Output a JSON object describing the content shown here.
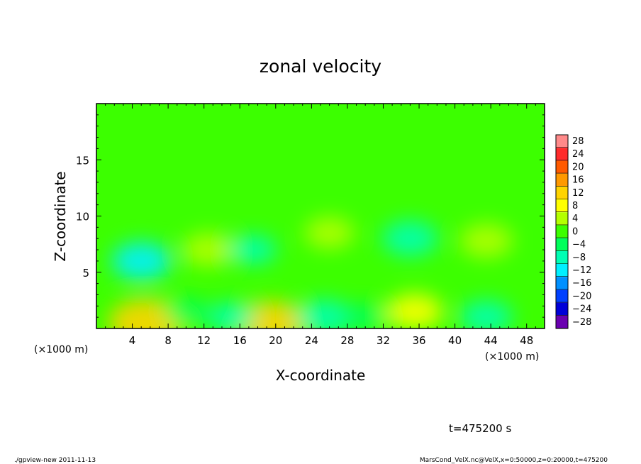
{
  "chart_data": {
    "type": "heatmap",
    "title": "zonal velocity",
    "xlabel": "X-coordinate",
    "ylabel": "Z-coordinate",
    "x_unit_left": "(×1000 m)",
    "x_unit_right": "(×1000 m)",
    "xlim": [
      0,
      50
    ],
    "ylim": [
      0,
      20
    ],
    "x_ticks": [
      4,
      8,
      12,
      16,
      20,
      24,
      28,
      32,
      36,
      40,
      44,
      48
    ],
    "y_ticks": [
      5,
      10,
      15
    ],
    "colorbar": {
      "levels": [
        28,
        24,
        20,
        16,
        12,
        8,
        4,
        0,
        -4,
        -8,
        -12,
        -16,
        -20,
        -24,
        -28
      ],
      "labels": [
        "28",
        "24",
        "20",
        "16",
        "12",
        "8",
        "4",
        "0",
        "−4",
        "−8",
        "−12",
        "−16",
        "−20",
        "−24",
        "−28"
      ],
      "colors": [
        "#ff8a8a",
        "#ff2b2b",
        "#ff5a00",
        "#ff9900",
        "#ffd400",
        "#ffff00",
        "#b4ff00",
        "#3cff00",
        "#00ff5a",
        "#00ffb4",
        "#00f0ff",
        "#0090ff",
        "#0040ff",
        "#0000d8",
        "#6a00b0"
      ]
    },
    "background_value": 0,
    "features": [
      {
        "x": 5.5,
        "z": 0.5,
        "value": 14
      },
      {
        "x": 19.5,
        "z": 0.5,
        "value": 12
      },
      {
        "x": 35.5,
        "z": 1.5,
        "value": 8
      },
      {
        "x": 12.5,
        "z": 7.0,
        "value": 7
      },
      {
        "x": 26.0,
        "z": 8.5,
        "value": 6
      },
      {
        "x": 43.5,
        "z": 7.8,
        "value": 7
      },
      {
        "x": 5.0,
        "z": 6.0,
        "value": -9
      },
      {
        "x": 17.5,
        "z": 7.0,
        "value": -5
      },
      {
        "x": 35.0,
        "z": 8.0,
        "value": -8
      },
      {
        "x": 25.5,
        "z": 1.0,
        "value": -8
      },
      {
        "x": 43.5,
        "z": 1.0,
        "value": -7
      },
      {
        "x": 15.0,
        "z": 1.0,
        "value": -5
      },
      {
        "x": 10.0,
        "z": 1.5,
        "value": -4
      },
      {
        "x": 30.0,
        "z": 1.0,
        "value": -4
      }
    ],
    "grid": false
  },
  "annotations": {
    "time": "t=475200 s",
    "footer_left": "./gpview-new  2011-11-13",
    "footer_right": "MarsCond_VelX.nc@VelX,x=0:50000,z=0:20000,t=475200"
  }
}
